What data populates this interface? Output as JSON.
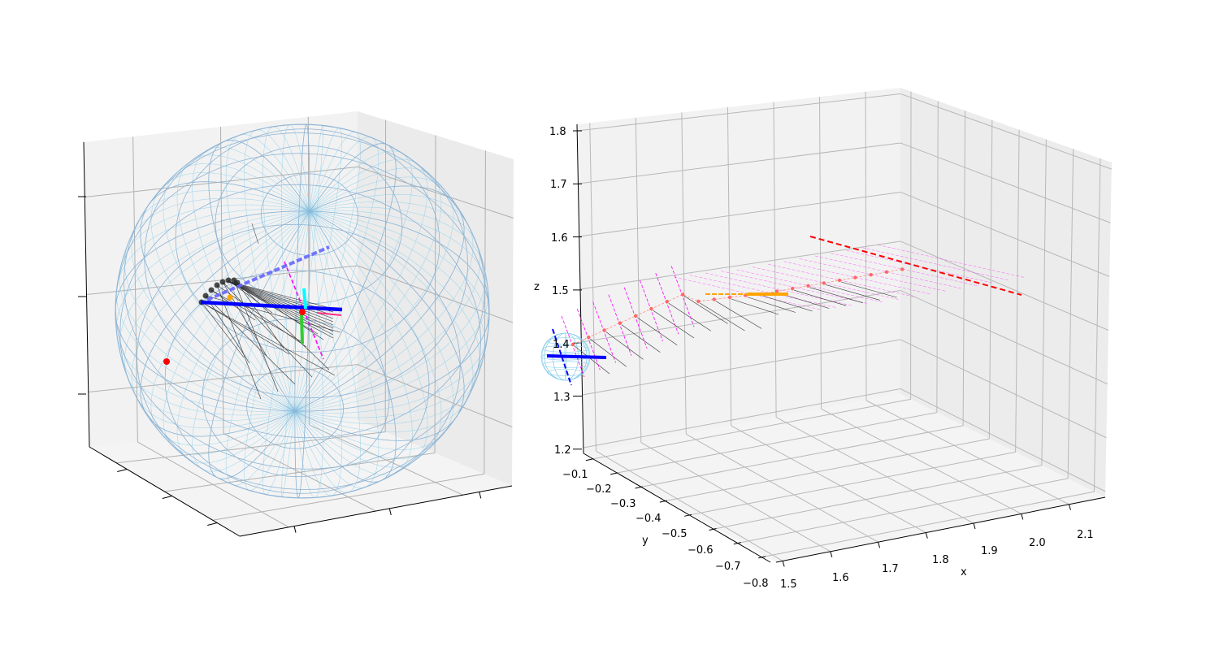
{
  "chart_data": [
    {
      "type": "3d-line",
      "title": "",
      "xlabel": "",
      "ylabel": "",
      "zlabel": "",
      "x_ticks": [],
      "y_ticks": [],
      "z_ticks": [],
      "elements": {
        "wireframe_sphere": {
          "color": "#87ceeb"
        },
        "axis_lines": [
          {
            "style": "solid",
            "color": "#0000ff"
          },
          {
            "style": "dashed",
            "color": "#6666ff"
          },
          {
            "style": "dashed",
            "color": "#ff00ff"
          },
          {
            "style": "solid",
            "color": "#00ffff"
          },
          {
            "style": "solid",
            "color": "#33cc33"
          }
        ],
        "points": [
          {
            "color": "#ff0000"
          },
          {
            "color": "#ff0000"
          },
          {
            "color": "#ffa500"
          }
        ],
        "trail_points": {
          "color": "#000000"
        }
      },
      "grid": true
    },
    {
      "type": "3d-line",
      "title": "",
      "xlabel": "x",
      "ylabel": "y",
      "zlabel": "z",
      "xlim": [
        1.48,
        2.17
      ],
      "ylim": [
        -0.82,
        -0.07
      ],
      "zlim": [
        1.19,
        1.82
      ],
      "x_ticks": [
        "1.5",
        "1.6",
        "1.7",
        "1.8",
        "1.9",
        "2.0",
        "2.1"
      ],
      "y_ticks": [
        "−0.1",
        "−0.2",
        "−0.3",
        "−0.4",
        "−0.5",
        "−0.6",
        "−0.7",
        "−0.8"
      ],
      "z_ticks": [
        "1.2",
        "1.3",
        "1.4",
        "1.5",
        "1.6",
        "1.7",
        "1.8"
      ],
      "elements": {
        "trajectory": {
          "color": "#ff6666",
          "marker": "o"
        },
        "target_line": {
          "style": "dashed",
          "color": "#ff0000"
        },
        "segment_line": {
          "style": "dashed",
          "color": "#ffa500"
        },
        "orientation_lines": [
          {
            "color": "#ff00ff"
          },
          {
            "color": "#000000"
          }
        ],
        "mini_sphere": {
          "color": "#87ceeb"
        }
      },
      "grid": true
    }
  ]
}
